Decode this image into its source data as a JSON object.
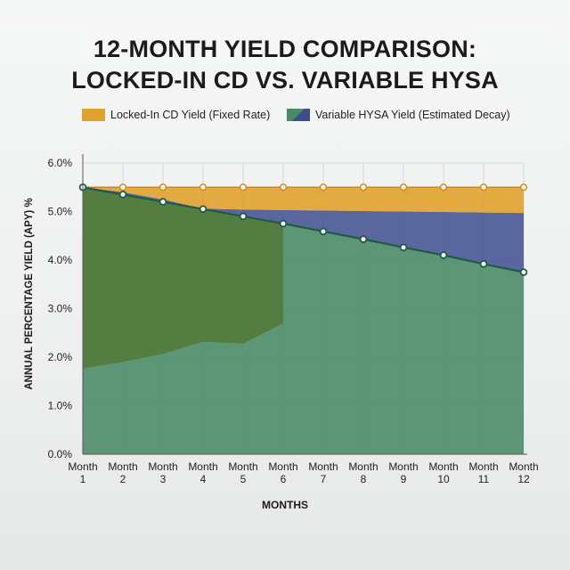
{
  "title": {
    "line1": "12-MONTH YIELD COMPARISON:",
    "line2": "LOCKED-IN CD VS. VARIABLE HYSA"
  },
  "legend": {
    "cd_label": "Locked-In CD Yield (Fixed Rate)",
    "hysa_label": "Variable HYSA Yield (Estimated Decay)"
  },
  "colors": {
    "cd": "#e0a22e",
    "hysa_gap": "#3f4d8f",
    "hysa_fill": "#4f8e6b",
    "hysa_dark_overlay": "#527a38",
    "hysa_line": "#1f5a46",
    "grid": "#d6d9d8"
  },
  "chart_data": {
    "type": "area",
    "title": "12-MONTH YIELD COMPARISON: LOCKED-IN CD VS. VARIABLE HYSA",
    "xlabel": "MONTHS",
    "ylabel": "ANNUAL PERCENTAGE YIELD (APY) %",
    "categories": [
      "Month 1",
      "Month 2",
      "Month 3",
      "Month 4",
      "Month 5",
      "Month 6",
      "Month 7",
      "Month 8",
      "Month 9",
      "Month 10",
      "Month 11",
      "Month 12"
    ],
    "x_tick_lines": [
      [
        "Month",
        "1"
      ],
      [
        "Month",
        "2"
      ],
      [
        "Month",
        "3"
      ],
      [
        "Month",
        "4"
      ],
      [
        "Month",
        "5"
      ],
      [
        "Month",
        "6"
      ],
      [
        "Month",
        "7"
      ],
      [
        "Month",
        "8"
      ],
      [
        "Month",
        "9"
      ],
      [
        "Month",
        "10"
      ],
      [
        "Month",
        "11"
      ],
      [
        "Month",
        "12"
      ]
    ],
    "y_ticks": [
      "0.0%",
      "1.0%",
      "2.0%",
      "3.0%",
      "4.0%",
      "5.0%",
      "6.0%"
    ],
    "ylim": [
      0,
      6
    ],
    "grid": true,
    "legend_position": "top",
    "series": [
      {
        "name": "Locked-In CD Yield (Fixed Rate)",
        "values": [
          5.5,
          5.5,
          5.5,
          5.5,
          5.5,
          5.5,
          5.5,
          5.5,
          5.5,
          5.5,
          5.5,
          5.5
        ]
      },
      {
        "name": "Variable HYSA Yield (Estimated Decay)",
        "values": [
          5.5,
          5.35,
          5.2,
          5.05,
          4.9,
          4.75,
          4.59,
          4.43,
          4.26,
          4.1,
          3.92,
          3.75
        ]
      }
    ],
    "cd_band_bottom": [
      5.5,
      5.4,
      5.25,
      5.06,
      5.04,
      5.03,
      5.02,
      5.01,
      5.0,
      4.99,
      4.98,
      4.97
    ],
    "overlay_lower_edge": [
      1.77,
      1.9,
      2.07,
      2.32,
      2.28,
      2.7
    ]
  }
}
